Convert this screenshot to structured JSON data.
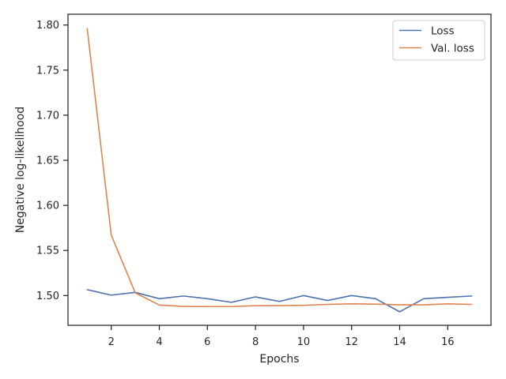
{
  "chart_data": {
    "type": "line",
    "xlabel": "Epochs",
    "ylabel": "Negative log-likelihood",
    "xlim": [
      0.2,
      17.8
    ],
    "ylim": [
      1.467,
      1.812
    ],
    "xticks": [
      2,
      4,
      6,
      8,
      10,
      12,
      14,
      16
    ],
    "yticks": [
      1.5,
      1.55,
      1.6,
      1.65,
      1.7,
      1.75,
      1.8
    ],
    "ytick_labels": [
      "1.50",
      "1.55",
      "1.60",
      "1.65",
      "1.70",
      "1.75",
      "1.80"
    ],
    "legend_position": "top-right",
    "grid": false,
    "x": [
      1,
      2,
      3,
      4,
      5,
      6,
      7,
      8,
      9,
      10,
      11,
      12,
      13,
      14,
      15,
      16,
      17
    ],
    "series": [
      {
        "name": "Loss",
        "color": "#4c72b0",
        "values": [
          1.5065,
          1.5005,
          1.5035,
          1.4965,
          1.4995,
          1.4965,
          1.4925,
          1.4985,
          1.4935,
          1.5,
          1.4945,
          1.5,
          1.4965,
          1.482,
          1.4965,
          1.498,
          1.4995
        ]
      },
      {
        "name": "Val. loss",
        "color": "#dd8452",
        "values": [
          1.796,
          1.567,
          1.503,
          1.4895,
          1.488,
          1.4878,
          1.4878,
          1.4887,
          1.4888,
          1.4892,
          1.4902,
          1.4908,
          1.4905,
          1.4897,
          1.4897,
          1.4908,
          1.4902
        ]
      }
    ]
  }
}
